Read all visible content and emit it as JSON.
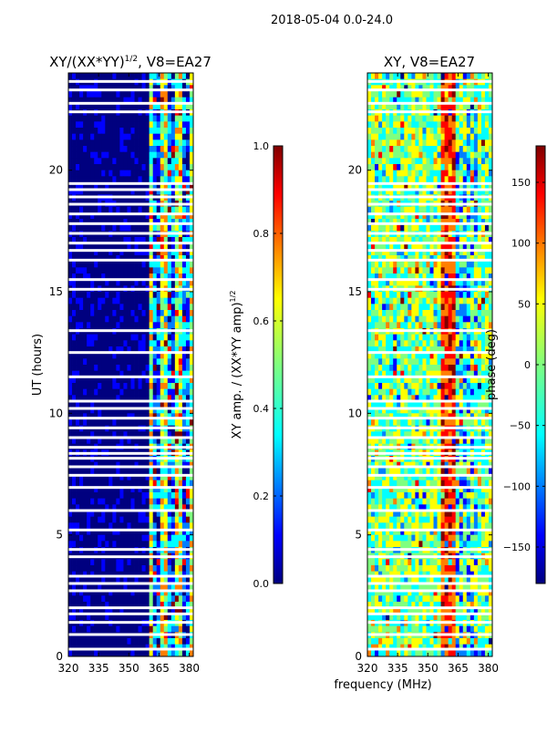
{
  "figure": {
    "suptitle": "2018-05-04 0.0-24.0",
    "xlabel_shared": "frequency (MHz)"
  },
  "colors": {
    "jet": [
      "#00007f",
      "#0000ff",
      "#007fff",
      "#00ffff",
      "#7fff7f",
      "#ffff00",
      "#ff7f00",
      "#ff0000",
      "#7f0000"
    ],
    "gap": "#ffffff"
  },
  "chart_data": [
    {
      "type": "heatmap",
      "title_main": "XY/(XX*YY)",
      "title_sup": "1/2",
      "title_suffix": ", V8=EA27",
      "xlabel": "",
      "ylabel": "UT (hours)",
      "xlim": [
        320,
        382
      ],
      "ylim": [
        0,
        24
      ],
      "xticks": [
        320,
        335,
        350,
        365,
        380
      ],
      "yticks": [
        0,
        5,
        10,
        15,
        20
      ],
      "active_band_mhz": [
        361,
        382
      ],
      "colorbar": {
        "label_main": "XY amp. / (XX*YY amp)",
        "label_sup": "1/2",
        "range": [
          0.0,
          1.0
        ],
        "ticks": [
          "0.0",
          "0.2",
          "0.4",
          "0.6",
          "0.8",
          "1.0"
        ]
      },
      "gaps_ut_hours": [
        0.3,
        0.9,
        1.4,
        1.75,
        2.0,
        2.7,
        3.0,
        3.3,
        4.1,
        4.4,
        5.2,
        6.0,
        6.95,
        7.45,
        7.8,
        8.15,
        8.35,
        8.6,
        9.0,
        9.4,
        9.8,
        10.2,
        10.5,
        11.5,
        12.5,
        13.4,
        15.1,
        15.5,
        16.3,
        16.7,
        17.0,
        17.4,
        17.8,
        18.2,
        18.6,
        18.9,
        19.2,
        19.45,
        22.4,
        22.75,
        23.3,
        23.65
      ]
    },
    {
      "type": "heatmap",
      "title_main": "XY, V8=EA27",
      "xlabel": "",
      "ylabel": "",
      "xlim": [
        320,
        382
      ],
      "ylim": [
        0,
        24
      ],
      "xticks": [
        320,
        335,
        350,
        365,
        380
      ],
      "yticks": [
        0,
        5,
        10,
        15,
        20
      ],
      "colorbar": {
        "label_main": "phase (deg)",
        "range": [
          -180,
          180
        ],
        "ticks": [
          "−150",
          "−100",
          "−50",
          "0",
          "50",
          "100",
          "150"
        ]
      },
      "gaps_ut_hours": [
        0.3,
        0.9,
        1.4,
        1.75,
        2.0,
        2.7,
        3.0,
        3.3,
        4.1,
        4.4,
        5.2,
        6.0,
        6.95,
        7.45,
        7.8,
        8.15,
        8.35,
        8.6,
        9.0,
        9.4,
        9.8,
        10.2,
        10.5,
        11.5,
        12.5,
        13.4,
        15.1,
        15.5,
        16.3,
        16.7,
        17.0,
        17.4,
        17.8,
        18.2,
        18.6,
        18.9,
        19.2,
        19.45,
        22.4,
        22.75,
        23.3,
        23.65
      ]
    }
  ]
}
